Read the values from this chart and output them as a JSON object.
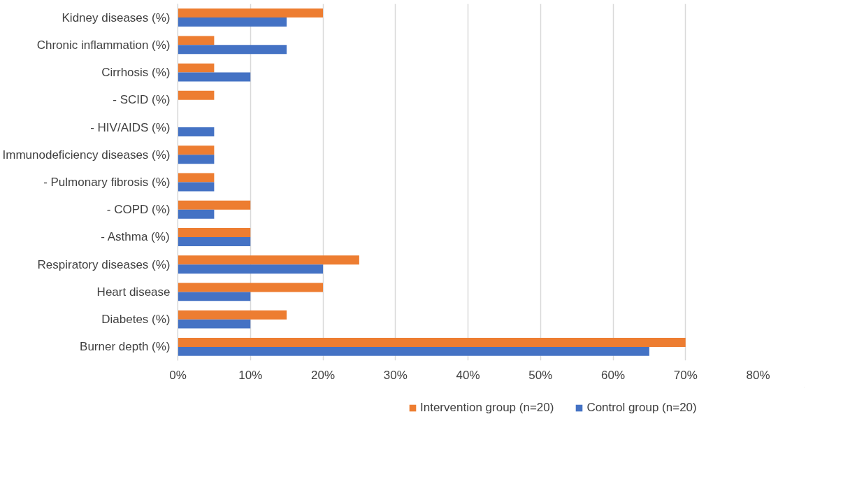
{
  "chart_data": {
    "type": "bar",
    "orientation": "horizontal",
    "categories": [
      "Kidney diseases (%)",
      "Chronic inflammation (%)",
      "Cirrhosis (%)",
      "- SCID (%)",
      "- HIV/AIDS (%)",
      "Immunodeficiency diseases (%)",
      "- Pulmonary fibrosis (%)",
      "- COPD (%)",
      "- Asthma (%)",
      "Respiratory diseases (%)",
      "Heart disease",
      "Diabetes (%)",
      "Burner depth (%)"
    ],
    "series": [
      {
        "name": "Intervention group (n=20)",
        "color": "#ed7d31",
        "values": [
          20,
          5,
          5,
          5,
          0,
          5,
          5,
          10,
          10,
          25,
          20,
          15,
          70
        ]
      },
      {
        "name": "Control group (n=20)",
        "color": "#4472c4",
        "values": [
          15,
          15,
          10,
          0,
          5,
          5,
          5,
          5,
          10,
          20,
          10,
          10,
          65
        ]
      }
    ],
    "xlim": [
      0,
      80
    ],
    "xticks": [
      {
        "value": 0,
        "label": "0%"
      },
      {
        "value": 10,
        "label": "10%"
      },
      {
        "value": 20,
        "label": "20%"
      },
      {
        "value": 30,
        "label": "30%"
      },
      {
        "value": 40,
        "label": "40%"
      },
      {
        "value": 50,
        "label": "50%"
      },
      {
        "value": 60,
        "label": "60%"
      },
      {
        "value": 70,
        "label": "70%"
      },
      {
        "value": 80,
        "label": "80%"
      }
    ],
    "grid": "x",
    "legend": "bottom"
  }
}
